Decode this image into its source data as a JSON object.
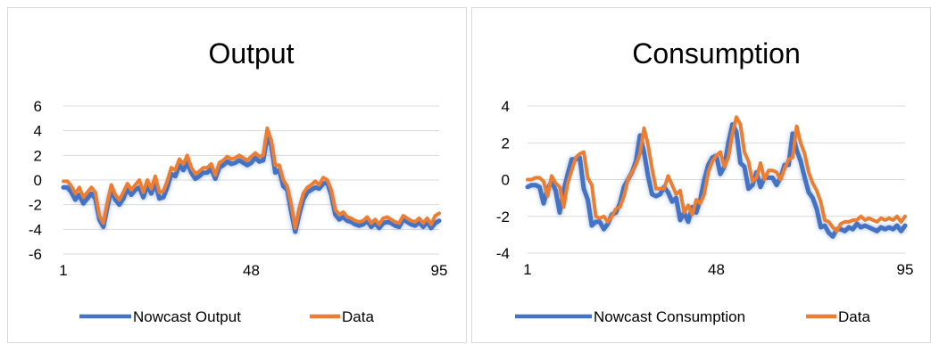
{
  "colors": {
    "nowcast": "#4472C4",
    "data": "#ED7D31",
    "grid": "#D9D9D9",
    "text": "#000000"
  },
  "chart_data": [
    {
      "type": "line",
      "title": "Output",
      "x_tick_labels": [
        "1",
        "48",
        "95"
      ],
      "x_range": [
        1,
        95
      ],
      "yticks": [
        -6,
        -4,
        -2,
        0,
        2,
        4,
        6
      ],
      "ylim": [
        -6,
        6
      ],
      "grid": true,
      "legend_position": "bottom",
      "x": [
        1,
        2,
        3,
        4,
        5,
        6,
        7,
        8,
        9,
        10,
        11,
        12,
        13,
        14,
        15,
        16,
        17,
        18,
        19,
        20,
        21,
        22,
        23,
        24,
        25,
        26,
        27,
        28,
        29,
        30,
        31,
        32,
        33,
        34,
        35,
        36,
        37,
        38,
        39,
        40,
        41,
        42,
        43,
        44,
        45,
        46,
        47,
        48,
        49,
        50,
        51,
        52,
        53,
        54,
        55,
        56,
        57,
        58,
        59,
        60,
        61,
        62,
        63,
        64,
        65,
        66,
        67,
        68,
        69,
        70,
        71,
        72,
        73,
        74,
        75,
        76,
        77,
        78,
        79,
        80,
        81,
        82,
        83,
        84,
        85,
        86,
        87,
        88,
        89,
        90,
        91,
        92,
        93,
        94,
        95
      ],
      "series": [
        {
          "name": "Nowcast Output",
          "values": [
            -0.6,
            -0.6,
            -1.0,
            -1.6,
            -1.2,
            -1.9,
            -1.5,
            -1.1,
            -1.5,
            -3.2,
            -3.8,
            -2.2,
            -0.8,
            -1.6,
            -2.0,
            -1.5,
            -0.7,
            -1.2,
            -0.8,
            -0.6,
            -1.4,
            -0.4,
            -1.1,
            -0.2,
            -1.5,
            -1.4,
            -0.6,
            0.5,
            0.3,
            1.2,
            0.8,
            1.4,
            0.6,
            0.1,
            0.3,
            0.6,
            0.6,
            0.9,
            0.1,
            1.0,
            1.2,
            1.5,
            1.3,
            1.4,
            1.6,
            1.4,
            1.2,
            1.4,
            1.8,
            1.5,
            1.6,
            3.5,
            2.8,
            0.6,
            0.8,
            -0.5,
            -0.8,
            -2.6,
            -4.2,
            -2.8,
            -1.6,
            -1.0,
            -0.8,
            -0.6,
            -0.7,
            -0.3,
            -0.2,
            -1.2,
            -2.8,
            -3.2,
            -3.0,
            -3.3,
            -3.4,
            -3.6,
            -3.7,
            -3.6,
            -3.3,
            -3.8,
            -3.5,
            -3.9,
            -3.5,
            -3.4,
            -3.5,
            -3.7,
            -3.8,
            -3.2,
            -3.4,
            -3.6,
            -3.7,
            -3.4,
            -3.8,
            -3.4,
            -3.9,
            -3.5,
            -3.3
          ]
        },
        {
          "name": "Data",
          "values": [
            -0.1,
            -0.1,
            -0.5,
            -1.1,
            -0.6,
            -1.4,
            -1.0,
            -0.6,
            -1.0,
            -2.9,
            -3.5,
            -1.8,
            -0.4,
            -1.2,
            -1.6,
            -1.0,
            -0.3,
            -0.8,
            -0.4,
            0.0,
            -1.0,
            0.0,
            -0.7,
            0.3,
            -1.0,
            -0.9,
            -0.1,
            1.0,
            0.8,
            1.7,
            1.3,
            2.0,
            1.0,
            0.5,
            0.7,
            1.0,
            1.0,
            1.3,
            0.4,
            1.4,
            1.6,
            1.9,
            1.7,
            1.8,
            2.0,
            1.8,
            1.6,
            1.9,
            2.2,
            1.9,
            2.0,
            4.2,
            3.2,
            1.2,
            1.2,
            0.0,
            -0.5,
            -2.0,
            -3.9,
            -2.3,
            -1.1,
            -0.6,
            -0.4,
            -0.1,
            -0.4,
            0.2,
            0.0,
            -0.8,
            -2.4,
            -2.8,
            -2.6,
            -3.0,
            -3.1,
            -3.3,
            -3.4,
            -3.3,
            -3.0,
            -3.5,
            -3.2,
            -3.6,
            -3.1,
            -3.0,
            -3.2,
            -3.4,
            -3.5,
            -2.9,
            -3.1,
            -3.3,
            -3.4,
            -3.1,
            -3.5,
            -3.1,
            -3.6,
            -2.9,
            -2.7
          ]
        }
      ]
    },
    {
      "type": "line",
      "title": "Consumption",
      "x_tick_labels": [
        "1",
        "48",
        "95"
      ],
      "x_range": [
        1,
        95
      ],
      "yticks": [
        -4,
        -2,
        0,
        2,
        4
      ],
      "ylim": [
        -4,
        4
      ],
      "grid": true,
      "legend_position": "bottom",
      "x": [
        1,
        2,
        3,
        4,
        5,
        6,
        7,
        8,
        9,
        10,
        11,
        12,
        13,
        14,
        15,
        16,
        17,
        18,
        19,
        20,
        21,
        22,
        23,
        24,
        25,
        26,
        27,
        28,
        29,
        30,
        31,
        32,
        33,
        34,
        35,
        36,
        37,
        38,
        39,
        40,
        41,
        42,
        43,
        44,
        45,
        46,
        47,
        48,
        49,
        50,
        51,
        52,
        53,
        54,
        55,
        56,
        57,
        58,
        59,
        60,
        61,
        62,
        63,
        64,
        65,
        66,
        67,
        68,
        69,
        70,
        71,
        72,
        73,
        74,
        75,
        76,
        77,
        78,
        79,
        80,
        81,
        82,
        83,
        84,
        85,
        86,
        87,
        88,
        89,
        90,
        91,
        92,
        93,
        94,
        95
      ],
      "series": [
        {
          "name": "Nowcast Consumption",
          "values": [
            -0.4,
            -0.3,
            -0.3,
            -0.4,
            -1.3,
            -0.5,
            -0.1,
            -0.6,
            -1.8,
            -0.6,
            0.3,
            1.1,
            1.1,
            1.2,
            -0.5,
            -1.1,
            -2.5,
            -2.3,
            -2.3,
            -2.7,
            -2.4,
            -1.9,
            -1.8,
            -1.3,
            -0.4,
            0.0,
            0.4,
            1.0,
            2.4,
            1.5,
            0.2,
            -0.8,
            -0.9,
            -0.8,
            -0.4,
            -0.7,
            -1.2,
            -1.0,
            -2.2,
            -1.8,
            -2.3,
            -1.5,
            -1.8,
            -1.1,
            0.0,
            0.8,
            1.2,
            1.3,
            0.3,
            0.7,
            2.0,
            3.0,
            2.6,
            0.9,
            0.7,
            -0.5,
            -0.3,
            0.4,
            -0.4,
            0.1,
            0.1,
            0.1,
            -0.3,
            0.1,
            0.8,
            0.8,
            2.5,
            1.6,
            1.0,
            0.1,
            -0.7,
            -1.0,
            -1.6,
            -2.6,
            -2.5,
            -2.9,
            -3.1,
            -2.7,
            -2.7,
            -2.8,
            -2.6,
            -2.7,
            -2.4,
            -2.6,
            -2.5,
            -2.6,
            -2.7,
            -2.8,
            -2.6,
            -2.7,
            -2.6,
            -2.7,
            -2.5,
            -2.8,
            -2.5
          ]
        },
        {
          "name": "Data",
          "values": [
            0.0,
            0.0,
            0.1,
            0.1,
            -0.1,
            -0.9,
            0.2,
            -0.2,
            -0.4,
            -1.5,
            -0.2,
            0.5,
            1.2,
            1.4,
            1.5,
            0.1,
            -0.3,
            -2.0,
            -2.1,
            -2.0,
            -2.3,
            -2.0,
            -1.6,
            -1.5,
            -0.9,
            0.0,
            0.4,
            0.8,
            1.4,
            2.8,
            1.9,
            0.6,
            -0.5,
            -0.5,
            -0.5,
            0.2,
            -0.3,
            -0.8,
            -0.6,
            -1.8,
            -1.4,
            -1.9,
            -1.1,
            -1.3,
            -0.8,
            0.4,
            1.0,
            1.3,
            1.5,
            0.7,
            1.2,
            2.5,
            3.4,
            3.0,
            1.5,
            1.0,
            -0.1,
            0.1,
            0.9,
            0.0,
            0.5,
            0.5,
            0.4,
            0.0,
            0.6,
            1.1,
            1.2,
            2.9,
            2.0,
            1.4,
            0.4,
            -0.2,
            -0.6,
            -1.2,
            -2.2,
            -2.3,
            -2.6,
            -2.8,
            -2.4,
            -2.3,
            -2.3,
            -2.2,
            -2.2,
            -2.0,
            -2.2,
            -2.1,
            -2.2,
            -2.3,
            -2.1,
            -2.2,
            -2.1,
            -2.2,
            -2.0,
            -2.3,
            -2.0
          ]
        }
      ]
    }
  ]
}
